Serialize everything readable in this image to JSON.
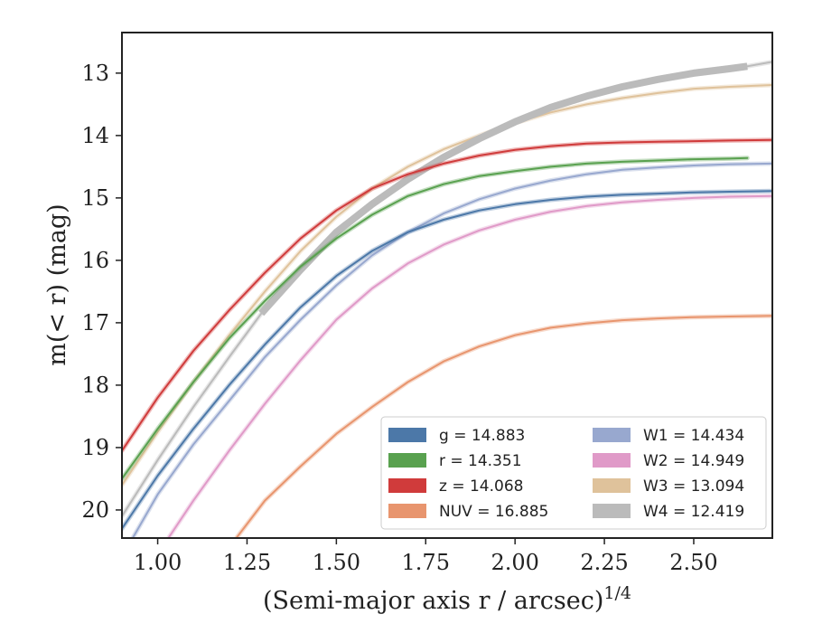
{
  "chart_data": {
    "type": "line",
    "title": "",
    "xlabel": "(Semi-major axis r / arcsec)",
    "xlabel_sup": "1/4",
    "ylabel": "m(< r) (mag)",
    "xlim": [
      0.9,
      2.72
    ],
    "ylim": [
      20.45,
      12.35
    ],
    "y_inverted": true,
    "x_ticks": [
      "1.00",
      "1.25",
      "1.50",
      "1.75",
      "2.00",
      "2.25",
      "2.50"
    ],
    "x_tick_values": [
      1.0,
      1.25,
      1.5,
      1.75,
      2.0,
      2.25,
      2.5
    ],
    "y_ticks": [
      "13",
      "14",
      "15",
      "16",
      "17",
      "18",
      "19",
      "20"
    ],
    "y_tick_values": [
      13,
      14,
      15,
      16,
      17,
      18,
      19,
      20
    ],
    "grid": false,
    "legend_position": "lower-right",
    "legend_columns": 2,
    "series": [
      {
        "name": "g = 14.883",
        "band": "g",
        "total_mag": "14.883",
        "color": "#4c78a8",
        "x": [
          0.9,
          1.0,
          1.1,
          1.2,
          1.3,
          1.4,
          1.5,
          1.6,
          1.7,
          1.8,
          1.9,
          2.0,
          2.1,
          2.2,
          2.3,
          2.4,
          2.5,
          2.6,
          2.72
        ],
        "y": [
          20.3,
          19.45,
          18.7,
          18.0,
          17.35,
          16.75,
          16.25,
          15.85,
          15.55,
          15.35,
          15.2,
          15.1,
          15.03,
          14.98,
          14.95,
          14.93,
          14.91,
          14.9,
          14.89
        ]
      },
      {
        "name": "r = 14.351",
        "band": "r",
        "total_mag": "14.351",
        "color": "#59a14f",
        "x": [
          0.9,
          1.0,
          1.1,
          1.2,
          1.3,
          1.4,
          1.5,
          1.6,
          1.7,
          1.8,
          1.9,
          2.0,
          2.1,
          2.2,
          2.3,
          2.4,
          2.5,
          2.6,
          2.65
        ],
        "y": [
          19.5,
          18.7,
          17.95,
          17.25,
          16.65,
          16.1,
          15.65,
          15.27,
          14.97,
          14.78,
          14.65,
          14.57,
          14.5,
          14.45,
          14.42,
          14.4,
          14.38,
          14.37,
          14.36
        ]
      },
      {
        "name": "z = 14.068",
        "band": "z",
        "total_mag": "14.068",
        "color": "#d03b3b",
        "x": [
          0.9,
          1.0,
          1.1,
          1.2,
          1.3,
          1.4,
          1.5,
          1.6,
          1.7,
          1.8,
          1.9,
          2.0,
          2.1,
          2.2,
          2.3,
          2.4,
          2.5,
          2.6,
          2.72
        ],
        "y": [
          19.05,
          18.2,
          17.45,
          16.8,
          16.2,
          15.65,
          15.2,
          14.85,
          14.62,
          14.45,
          14.32,
          14.23,
          14.17,
          14.13,
          14.11,
          14.1,
          14.09,
          14.08,
          14.07
        ]
      },
      {
        "name": "NUV = 16.885",
        "band": "NUV",
        "total_mag": "16.885",
        "color": "#e8956e",
        "x": [
          1.22,
          1.3,
          1.4,
          1.5,
          1.6,
          1.7,
          1.8,
          1.9,
          2.0,
          2.1,
          2.2,
          2.3,
          2.4,
          2.5,
          2.6,
          2.72
        ],
        "y": [
          20.45,
          19.85,
          19.3,
          18.78,
          18.35,
          17.95,
          17.62,
          17.38,
          17.2,
          17.08,
          17.01,
          16.96,
          16.93,
          16.91,
          16.9,
          16.89
        ]
      },
      {
        "name": "W1 = 14.434",
        "band": "W1",
        "total_mag": "14.434",
        "color": "#98a8cf",
        "x": [
          0.93,
          1.0,
          1.1,
          1.2,
          1.3,
          1.4,
          1.5,
          1.6,
          1.7,
          1.8,
          1.9,
          2.0,
          2.1,
          2.2,
          2.3,
          2.4,
          2.5,
          2.6,
          2.72
        ],
        "y": [
          20.45,
          19.75,
          18.95,
          18.25,
          17.55,
          16.95,
          16.4,
          15.92,
          15.55,
          15.25,
          15.02,
          14.85,
          14.72,
          14.62,
          14.55,
          14.51,
          14.48,
          14.46,
          14.45
        ]
      },
      {
        "name": "W2 = 14.949",
        "band": "W2",
        "total_mag": "14.949",
        "color": "#e09ac8",
        "x": [
          1.03,
          1.1,
          1.2,
          1.3,
          1.4,
          1.5,
          1.6,
          1.7,
          1.8,
          1.9,
          2.0,
          2.1,
          2.2,
          2.3,
          2.4,
          2.5,
          2.6,
          2.72
        ],
        "y": [
          20.45,
          19.85,
          19.05,
          18.3,
          17.6,
          16.95,
          16.45,
          16.05,
          15.75,
          15.52,
          15.35,
          15.22,
          15.13,
          15.07,
          15.03,
          15.0,
          14.98,
          14.97
        ]
      },
      {
        "name": "W3 = 13.094",
        "band": "W3",
        "total_mag": "13.094",
        "color": "#dfc29b",
        "x": [
          0.9,
          1.0,
          1.1,
          1.2,
          1.3,
          1.4,
          1.5,
          1.6,
          1.7,
          1.8,
          1.9,
          2.0,
          2.1,
          2.2,
          2.3,
          2.4,
          2.5,
          2.6,
          2.72
        ],
        "y": [
          19.6,
          18.75,
          17.95,
          17.2,
          16.5,
          15.85,
          15.3,
          14.85,
          14.5,
          14.22,
          14.0,
          13.8,
          13.63,
          13.5,
          13.4,
          13.32,
          13.25,
          13.22,
          13.19
        ]
      },
      {
        "name": "W4 = 12.419",
        "band": "W4",
        "total_mag": "12.419",
        "color": "#bbbbbb",
        "x": [
          0.9,
          1.0,
          1.1,
          1.2,
          1.29,
          1.4,
          1.5,
          1.6,
          1.7,
          1.8,
          1.9,
          2.0,
          2.1,
          2.2,
          2.3,
          2.4,
          2.5,
          2.6,
          2.65,
          2.72
        ],
        "y": [
          20.1,
          19.2,
          18.35,
          17.55,
          16.85,
          16.15,
          15.55,
          15.1,
          14.7,
          14.35,
          14.05,
          13.78,
          13.55,
          13.37,
          13.22,
          13.1,
          13.0,
          12.93,
          12.89,
          12.82
        ],
        "thick_range": [
          1.29,
          2.65
        ]
      }
    ]
  }
}
